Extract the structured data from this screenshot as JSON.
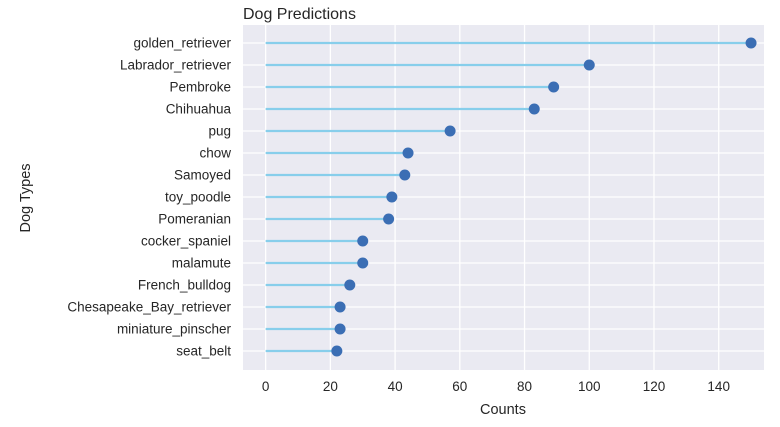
{
  "chart_data": {
    "type": "lollipop",
    "title": "Dog Predictions",
    "xlabel": "Counts",
    "ylabel": "Dog Types",
    "xlim": [
      -7,
      154
    ],
    "xticks": [
      0,
      20,
      40,
      60,
      80,
      100,
      120,
      140
    ],
    "grid": true,
    "categories": [
      "golden_retriever",
      "Labrador_retriever",
      "Pembroke",
      "Chihuahua",
      "pug",
      "chow",
      "Samoyed",
      "toy_poodle",
      "Pomeranian",
      "cocker_spaniel",
      "malamute",
      "French_bulldog",
      "Chesapeake_Bay_retriever",
      "miniature_pinscher",
      "seat_belt"
    ],
    "values": [
      150,
      100,
      89,
      83,
      57,
      44,
      43,
      39,
      38,
      30,
      30,
      26,
      23,
      23,
      22
    ],
    "colors": {
      "background": "#EAEAF2",
      "grid": "#FFFFFF",
      "stem": "#87CEEB",
      "marker": "#3B6EB4"
    }
  }
}
